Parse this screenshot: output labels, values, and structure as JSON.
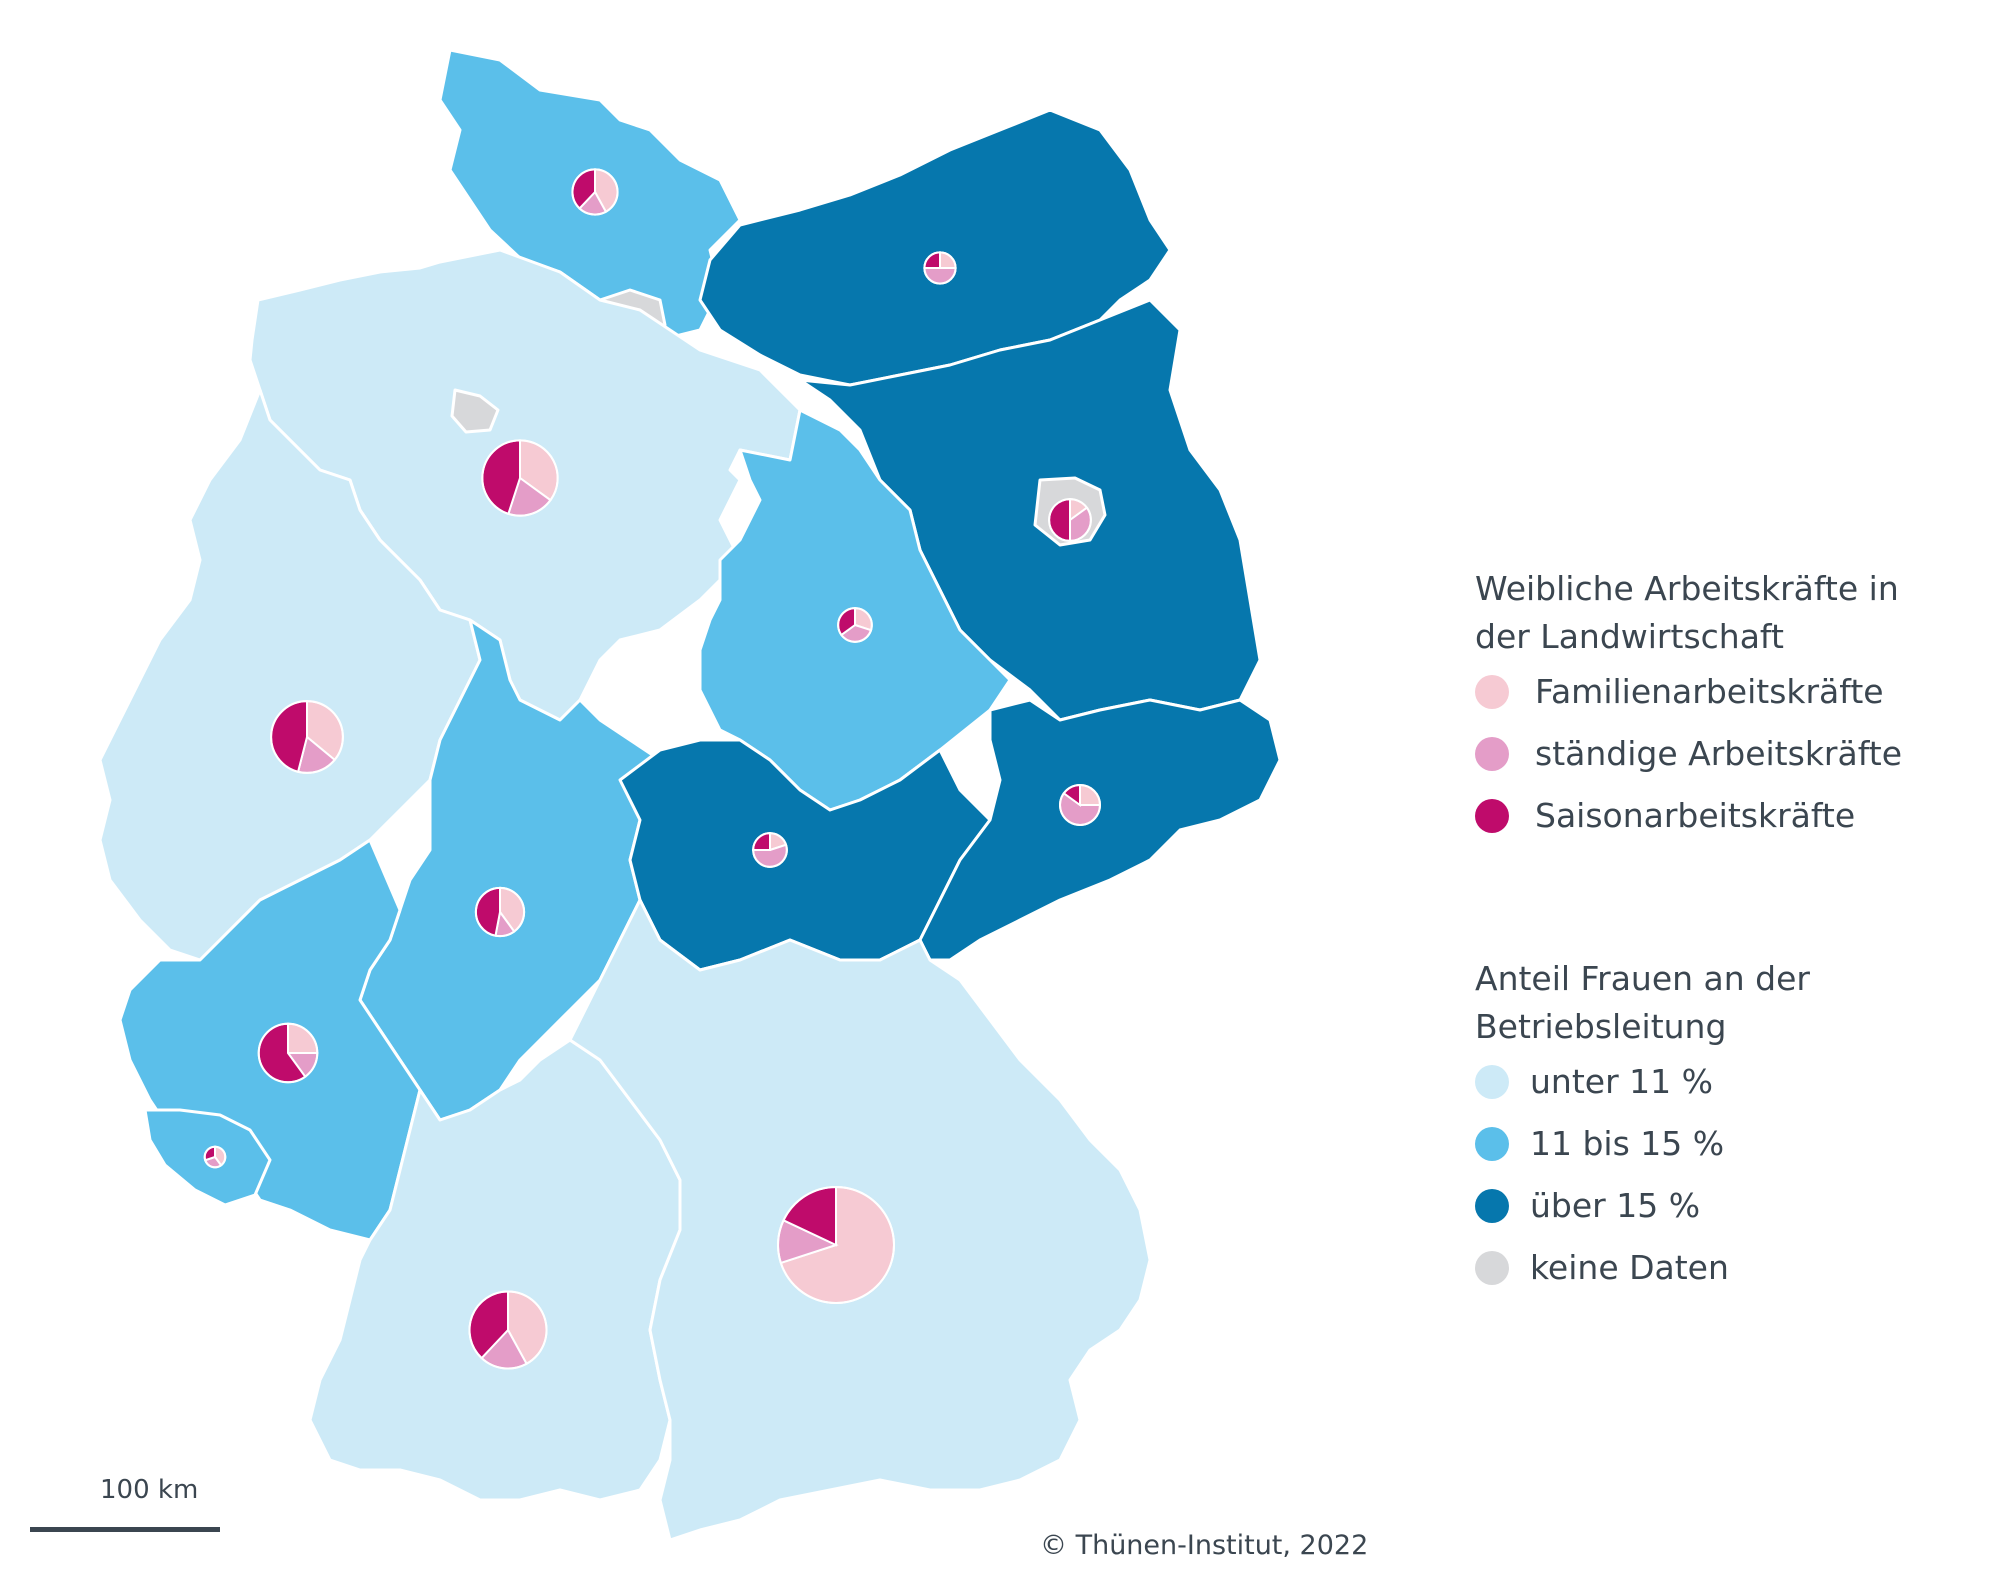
{
  "colors": {
    "unter_11": "#cdeaf7",
    "bis_15": "#5bbfea",
    "ueber_15": "#0677ad",
    "keine_daten": "#d7d8da",
    "border": "#ffffff",
    "familien": "#f6cad3",
    "staendige": "#e49dc8",
    "saison": "#bf0b6b"
  },
  "legend_pie": {
    "title": "Weibliche Arbeitskräfte in\nder Landwirtschaft",
    "items": [
      {
        "label": "Familienarbeitskräfte",
        "color": "#f6cad3"
      },
      {
        "label": "ständige Arbeitskräfte",
        "color": "#e49dc8"
      },
      {
        "label": "Saisonarbeitskräfte",
        "color": "#bf0b6b"
      }
    ]
  },
  "legend_share": {
    "title": "Anteil Frauen an der\nBetriebsleitung",
    "items": [
      {
        "label": "unter 11 %",
        "color": "#cdeaf7"
      },
      {
        "label": "11 bis 15 %",
        "color": "#5bbfea"
      },
      {
        "label": "über 15 %",
        "color": "#0677ad"
      },
      {
        "label": "keine Daten",
        "color": "#d7d8da"
      }
    ]
  },
  "states": [
    {
      "id": "schleswig-holstein",
      "category": "bis_15"
    },
    {
      "id": "hamburg",
      "category": "keine_daten"
    },
    {
      "id": "mecklenburg-vorpommern",
      "category": "ueber_15"
    },
    {
      "id": "niedersachsen",
      "category": "unter_11"
    },
    {
      "id": "bremen",
      "category": "keine_daten"
    },
    {
      "id": "brandenburg",
      "category": "ueber_15"
    },
    {
      "id": "berlin",
      "category": "keine_daten"
    },
    {
      "id": "sachsen-anhalt",
      "category": "bis_15"
    },
    {
      "id": "nordrhein-westfalen",
      "category": "unter_11"
    },
    {
      "id": "hessen",
      "category": "bis_15"
    },
    {
      "id": "thueringen",
      "category": "ueber_15"
    },
    {
      "id": "sachsen",
      "category": "ueber_15"
    },
    {
      "id": "rheinland-pfalz",
      "category": "bis_15"
    },
    {
      "id": "saarland",
      "category": "bis_15"
    },
    {
      "id": "baden-wuerttemberg",
      "category": "unter_11"
    },
    {
      "id": "bayern",
      "category": "unter_11"
    }
  ],
  "pies": [
    {
      "state": "schleswig-holstein",
      "total_rel": 0.11,
      "familien": 0.42,
      "staendige": 0.2,
      "saison": 0.38
    },
    {
      "state": "mecklenburg-vorpommern",
      "total_rel": 0.04,
      "familien": 0.25,
      "staendige": 0.5,
      "saison": 0.25
    },
    {
      "state": "niedersachsen",
      "total_rel": 0.38,
      "familien": 0.35,
      "staendige": 0.2,
      "saison": 0.45
    },
    {
      "state": "brandenburg",
      "total_rel": 0.09,
      "familien": 0.15,
      "staendige": 0.35,
      "saison": 0.5
    },
    {
      "state": "sachsen-anhalt",
      "total_rel": 0.05,
      "familien": 0.3,
      "staendige": 0.35,
      "saison": 0.35
    },
    {
      "state": "nordrhein-westfalen",
      "total_rel": 0.34,
      "familien": 0.36,
      "staendige": 0.18,
      "saison": 0.46
    },
    {
      "state": "hessen",
      "total_rel": 0.13,
      "familien": 0.4,
      "staendige": 0.13,
      "saison": 0.47
    },
    {
      "state": "thueringen",
      "total_rel": 0.05,
      "familien": 0.2,
      "staendige": 0.55,
      "saison": 0.25
    },
    {
      "state": "sachsen",
      "total_rel": 0.08,
      "familien": 0.25,
      "staendige": 0.6,
      "saison": 0.15
    },
    {
      "state": "rheinland-pfalz",
      "total_rel": 0.21,
      "familien": 0.25,
      "staendige": 0.15,
      "saison": 0.6
    },
    {
      "state": "saarland",
      "total_rel": 0.01,
      "familien": 0.4,
      "staendige": 0.3,
      "saison": 0.3
    },
    {
      "state": "baden-wuerttemberg",
      "total_rel": 0.4,
      "familien": 0.42,
      "staendige": 0.2,
      "saison": 0.38
    },
    {
      "state": "bayern",
      "total_rel": 1.0,
      "familien": 0.7,
      "staendige": 0.12,
      "saison": 0.18
    }
  ],
  "scale": {
    "label": "100 km"
  },
  "credit": "© Thünen-Institut, 2022"
}
